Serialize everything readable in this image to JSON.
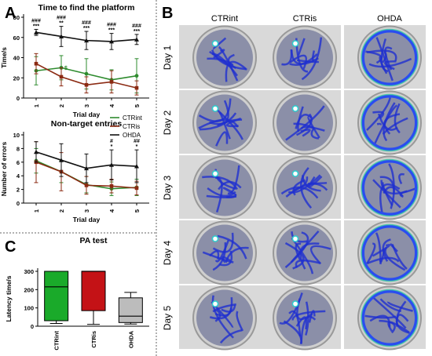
{
  "panel_letters": {
    "a": "A",
    "b": "B",
    "c": "C"
  },
  "colors": {
    "ctrint": "#2e8b2e",
    "ctris": "#8b2a12",
    "ohda": "#111111",
    "box_ctrint": "#1aaa2a",
    "box_ctris": "#c41216",
    "box_ohda": "#bcbcbc"
  },
  "heatmaps": {
    "columns": [
      "CTRint",
      "CTRis",
      "OHDA"
    ],
    "rows": [
      "Day 1",
      "Day 2",
      "Day 3",
      "Day 4",
      "Day 5"
    ]
  },
  "chart_data": [
    {
      "id": "time",
      "type": "line",
      "title": "Time to find the platform",
      "xlabel": "Trial day",
      "ylabel": "Time/s",
      "categories": [
        "1",
        "2",
        "3",
        "4",
        "5"
      ],
      "ylim": [
        0,
        80
      ],
      "yticks": [
        0,
        20,
        40,
        60,
        80
      ],
      "grid": false,
      "series": [
        {
          "name": "CTRint",
          "values": [
            27,
            30,
            24,
            18,
            22
          ],
          "err": [
            14,
            12,
            15,
            10,
            17
          ]
        },
        {
          "name": "CTRis",
          "values": [
            34,
            21,
            13,
            16,
            10
          ],
          "err": [
            10,
            9,
            8,
            11,
            7
          ]
        },
        {
          "name": "OHDA",
          "values": [
            65,
            61,
            57,
            56,
            58
          ],
          "err": [
            3,
            10,
            9,
            8,
            5
          ]
        }
      ],
      "annotations": [
        {
          "x": "1",
          "hash": "###",
          "star": "***"
        },
        {
          "x": "2",
          "hash": "###",
          "star": "**",
          "extra": "$"
        },
        {
          "x": "3",
          "hash": "###",
          "star": "***"
        },
        {
          "x": "4",
          "hash": "###",
          "star": "***"
        },
        {
          "x": "5",
          "hash": "###",
          "star": "***"
        }
      ]
    },
    {
      "id": "errors",
      "type": "line",
      "title": "Non-target entries",
      "xlabel": "Trial day",
      "ylabel": "Number of errors",
      "categories": [
        "1",
        "2",
        "3",
        "4",
        "5"
      ],
      "ylim": [
        0,
        10
      ],
      "yticks": [
        0,
        2,
        4,
        6,
        8,
        10
      ],
      "grid": false,
      "legend": "top-right",
      "series": [
        {
          "name": "CTRint",
          "values": [
            6.2,
            4.6,
            2.7,
            2.1,
            2.3
          ],
          "err": [
            1.8,
            1.6,
            1.2,
            1.0,
            1.2
          ]
        },
        {
          "name": "CTRis",
          "values": [
            6.0,
            4.6,
            2.6,
            2.5,
            2.2
          ],
          "err": [
            3.0,
            2.8,
            1.3,
            1.0,
            1.0
          ]
        },
        {
          "name": "OHDA",
          "values": [
            7.5,
            6.3,
            5.1,
            5.6,
            5.4
          ],
          "err": [
            1.5,
            2.4,
            2.1,
            2.2,
            2.4
          ]
        }
      ],
      "annotations": [
        {
          "x": "4",
          "hash": "#",
          "star": "*"
        },
        {
          "x": "5",
          "hash": "##",
          "star": "*"
        }
      ]
    },
    {
      "id": "pa",
      "type": "box",
      "title": "PA test",
      "ylabel": "Latency time/s",
      "categories": [
        "CTRint",
        "CTRis",
        "OHDA"
      ],
      "ylim": [
        0,
        300
      ],
      "yticks": [
        0,
        100,
        200,
        300
      ],
      "boxes": [
        {
          "name": "CTRint",
          "min": 15,
          "q1": 30,
          "median": 215,
          "q3": 300,
          "max": 300
        },
        {
          "name": "CTRis",
          "min": 10,
          "q1": 85,
          "median": 300,
          "q3": 300,
          "max": 300
        },
        {
          "name": "OHDA",
          "min": 12,
          "q1": 20,
          "median": 55,
          "q3": 155,
          "max": 185
        }
      ]
    }
  ]
}
